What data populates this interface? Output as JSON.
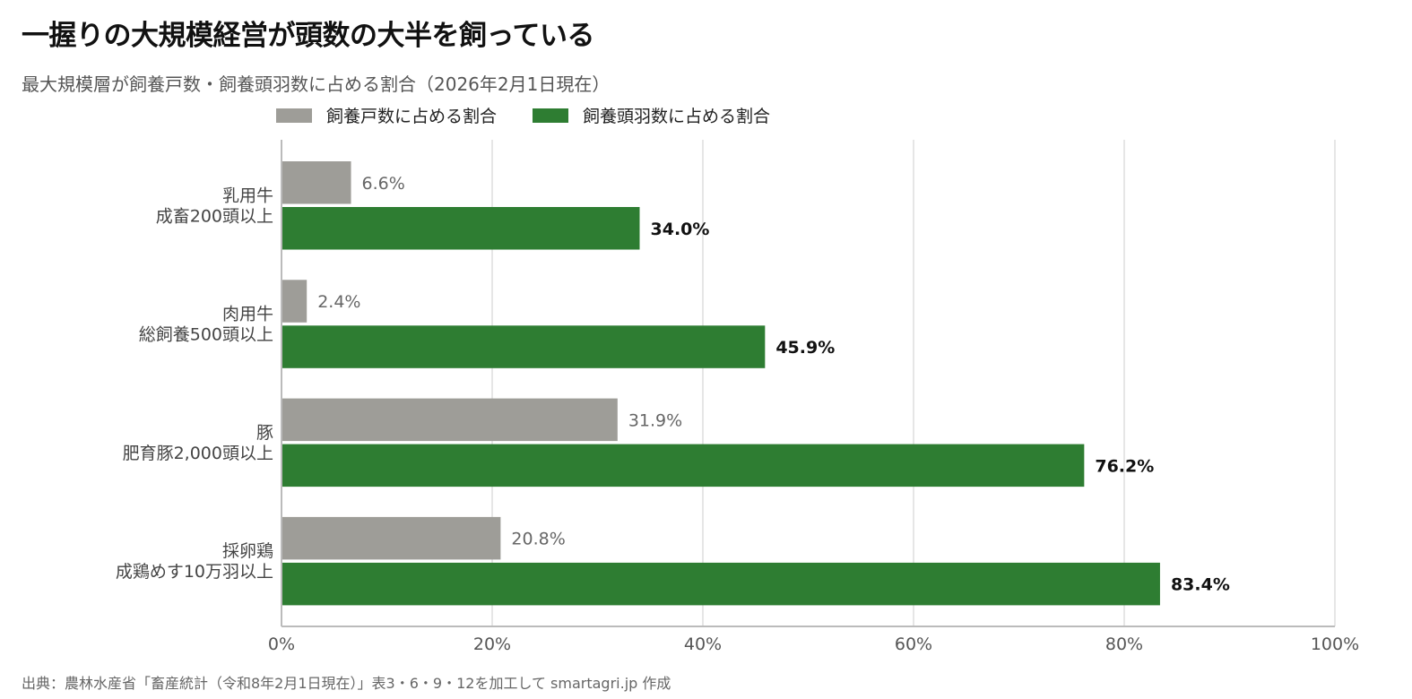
{
  "chart_data": {
    "type": "bar",
    "orientation": "horizontal",
    "title": "一握りの大規模経営が頭数の大半を飼っている",
    "subtitle": "最大規模層が飼養戸数・飼養頭羽数に占める割合（2026年2月1日現在）",
    "categories": [
      [
        "乳用牛",
        "成畜200頭以上"
      ],
      [
        "肉用牛",
        "総飼養500頭以上"
      ],
      [
        "豚",
        "肥育豚2,000頭以上"
      ],
      [
        "採卵鶏",
        "成鶏めす10万羽以上"
      ]
    ],
    "series": [
      {
        "name": "飼養戸数に占める割合",
        "color": "#9e9d98",
        "values": [
          6.6,
          2.4,
          31.9,
          20.8
        ],
        "labels": [
          "6.6%",
          "2.4%",
          "31.9%",
          "20.8%"
        ]
      },
      {
        "name": "飼養頭羽数に占める割合",
        "color": "#2e7d32",
        "values": [
          34.0,
          45.9,
          76.2,
          83.4
        ],
        "labels": [
          "34.0%",
          "45.9%",
          "76.2%",
          "83.4%"
        ]
      }
    ],
    "xlim": [
      0,
      100
    ],
    "x_ticks": [
      "0%",
      "20%",
      "40%",
      "60%",
      "80%",
      "100%"
    ],
    "grid": true,
    "legend_position": "top"
  },
  "source": "出典：農林水産省「畜産統計（令和8年2月1日現在）」表3・6・9・12を加工して smartagri.jp 作成"
}
